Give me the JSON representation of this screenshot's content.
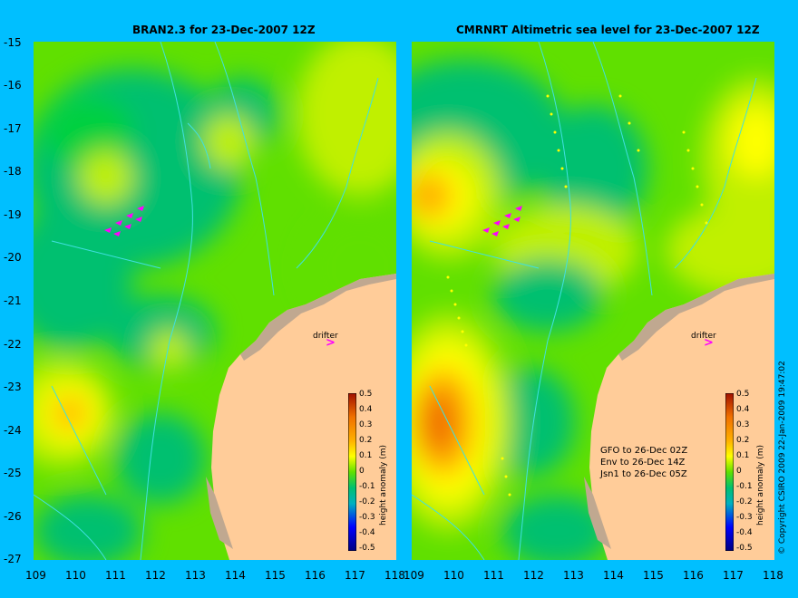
{
  "left_panel": {
    "title": "BRAN2.3 for 23-Dec-2007 12Z",
    "drifter_label": "drifter"
  },
  "right_panel": {
    "title": "CMRNRT Altimetric sea level  for 23-Dec-2007 12Z",
    "drifter_label": "drifter",
    "legend_lines": [
      "GFO to 26-Dec 02Z",
      "Env to 26-Dec 14Z",
      "Jsn1 to 26-Dec 05Z"
    ]
  },
  "y_ticks": [
    "-15",
    "-16",
    "-17",
    "-18",
    "-19",
    "-20",
    "-21",
    "-22",
    "-23",
    "-24",
    "-25",
    "-26",
    "-27"
  ],
  "x_ticks_left": [
    "109",
    "110",
    "111",
    "112",
    "113",
    "114",
    "115",
    "116",
    "117",
    "118"
  ],
  "x_ticks_right": [
    "109",
    "110",
    "111",
    "112",
    "113",
    "114",
    "115",
    "116",
    "117",
    "118"
  ],
  "colorbar": {
    "ticks": [
      "0.5",
      "0.4",
      "0.3",
      "0.2",
      "0.1",
      "0",
      "-0.1",
      "-0.2",
      "-0.3",
      "-0.4",
      "-0.5"
    ],
    "label": "height anomaly (m)"
  },
  "copyright": "© Copyright CSIRO 2009  22-Jan-2009 19:47:02",
  "colors": {
    "background": "#00bfff",
    "land": "#ffcc99",
    "shelf": "#c0a890",
    "contour": "#40e0e0",
    "drifter_arrow": "#ff00ff"
  },
  "colormap": [
    "#000080",
    "#0000ff",
    "#0060ff",
    "#00b0c0",
    "#00c070",
    "#00d040",
    "#60e000",
    "#c0f000",
    "#ffff00",
    "#ffb000",
    "#f07000",
    "#d04000",
    "#a01000"
  ]
}
